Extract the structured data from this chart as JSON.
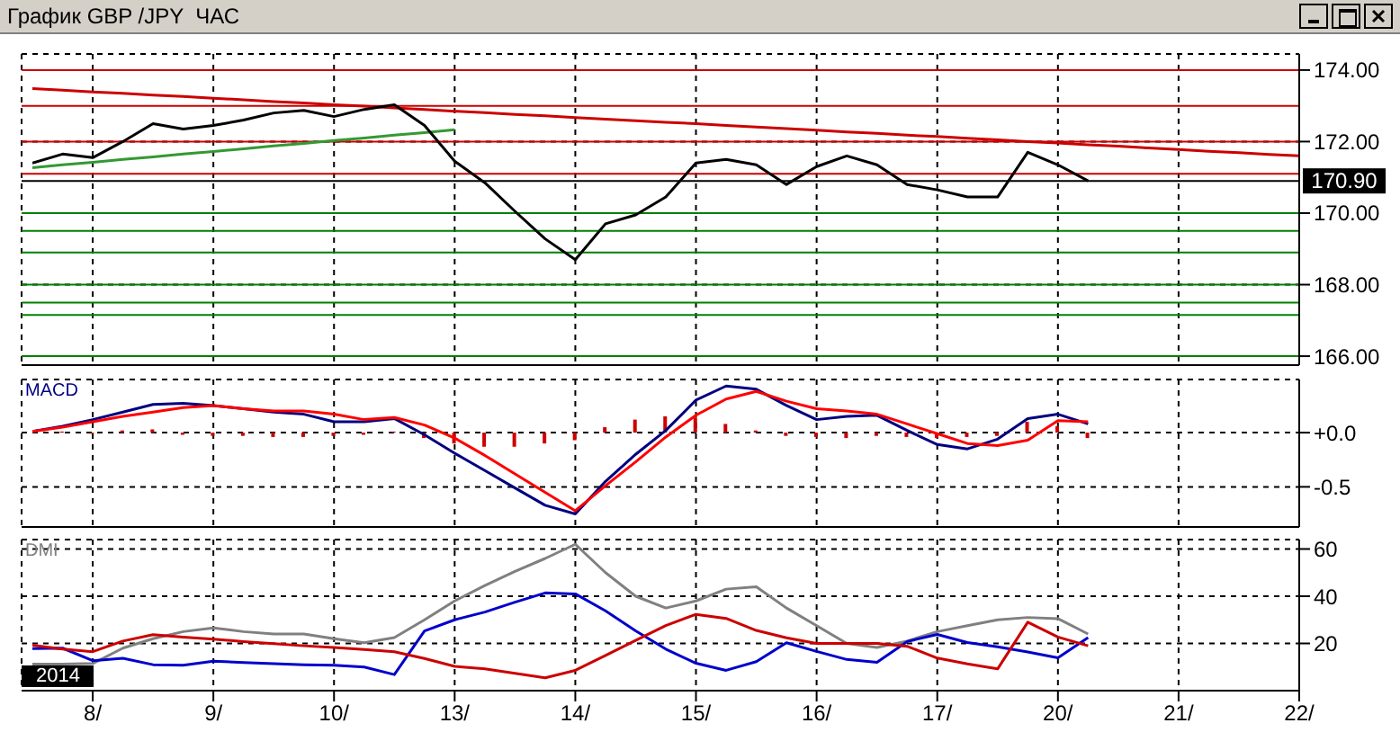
{
  "chart_data": [
    {
      "type": "line",
      "title": "График GBP /JPY  ЧАС",
      "categories": [
        null,
        null,
        null,
        null,
        null,
        null,
        null,
        null,
        null,
        null,
        null,
        null,
        null,
        null,
        null,
        null,
        null,
        null,
        null,
        null,
        null,
        null,
        null,
        null,
        null,
        null,
        null,
        null,
        null,
        null,
        null,
        null,
        null,
        null,
        null,
        null,
        null,
        null,
        null,
        null,
        null,
        null,
        null
      ],
      "ylim": [
        165.75,
        174.45
      ],
      "yticks": [
        {
          "value": 166,
          "label": "166.00"
        },
        {
          "value": 168,
          "label": "168.00"
        },
        {
          "value": 170,
          "label": "170.00"
        },
        {
          "value": 172,
          "label": "172.00"
        },
        {
          "value": 174,
          "label": "174.00"
        }
      ],
      "grid": true,
      "tick_labels": "y",
      "ref_lines": [
        {
          "axis": "y",
          "value": 174,
          "color": "#cc0000"
        },
        {
          "axis": "y",
          "value": 173,
          "color": "#cc0000"
        },
        {
          "axis": "y",
          "value": 172,
          "color": "#cc0000"
        },
        {
          "axis": "y",
          "value": 171.1,
          "color": "#cc0000"
        },
        {
          "axis": "y",
          "value": 170.9,
          "label": "170.90",
          "color": "#000000"
        },
        {
          "axis": "y",
          "value": 170,
          "color": "#008000"
        },
        {
          "axis": "y",
          "value": 169.5,
          "color": "#008000"
        },
        {
          "axis": "y",
          "value": 168.9,
          "color": "#008000"
        },
        {
          "axis": "y",
          "value": 168,
          "color": "#008000"
        },
        {
          "axis": "y",
          "value": 167.5,
          "color": "#008000"
        },
        {
          "axis": "y",
          "value": 167.15,
          "color": "#008000"
        },
        {
          "axis": "y",
          "value": 166,
          "color": "#008000"
        }
      ],
      "series": [
        {
          "type": "line",
          "color": "#cc0000",
          "values": [
            173.48,
            173.44,
            173.39,
            173.35,
            173.3,
            173.26,
            173.21,
            173.17,
            173.12,
            173.08,
            173.03,
            172.99,
            172.94,
            172.9,
            172.85,
            172.81,
            172.76,
            172.72,
            172.67,
            172.63,
            172.58,
            172.54,
            172.5,
            172.45,
            172.41,
            172.36,
            172.32,
            172.27,
            172.23,
            172.18,
            172.14,
            172.09,
            172.05,
            172.0,
            171.96,
            171.91,
            171.87,
            171.82,
            171.78,
            171.73,
            171.69,
            171.64,
            171.6
          ]
        },
        {
          "type": "line",
          "color": "#339933",
          "values": [
            171.27,
            171.35,
            171.42,
            171.5,
            171.57,
            171.65,
            171.72,
            171.8,
            171.88,
            171.95,
            172.03,
            172.1,
            172.18,
            172.25,
            172.33,
            null,
            null,
            null,
            null,
            null,
            null,
            null,
            null,
            null,
            null,
            null,
            null,
            null,
            null,
            null,
            null,
            null,
            null,
            null,
            null,
            null,
            null,
            null,
            null,
            null,
            null,
            null,
            null
          ]
        },
        {
          "type": "line",
          "color": "#000000",
          "values": [
            171.4,
            171.65,
            171.55,
            172.0,
            172.5,
            172.35,
            172.45,
            172.6,
            172.8,
            172.87,
            172.7,
            172.9,
            173.03,
            172.45,
            171.45,
            170.85,
            170.05,
            169.28,
            168.7,
            169.7,
            169.95,
            170.45,
            171.4,
            171.5,
            171.35,
            170.8,
            171.3,
            171.6,
            171.35,
            170.8,
            170.65,
            170.45,
            170.45,
            171.7,
            171.35,
            170.9,
            null,
            null,
            null,
            null,
            null,
            null,
            null
          ]
        }
      ]
    },
    {
      "type": "line",
      "title": "MACD",
      "categories": [
        null,
        null,
        null,
        null,
        null,
        null,
        null,
        null,
        null,
        null,
        null,
        null,
        null,
        null,
        null,
        null,
        null,
        null,
        null,
        null,
        null,
        null,
        null,
        null,
        null,
        null,
        null,
        null,
        null,
        null,
        null,
        null,
        null,
        null,
        null,
        null,
        null,
        null,
        null,
        null,
        null,
        null,
        null
      ],
      "ylim": [
        -0.87,
        0.49
      ],
      "yticks": [
        {
          "value": 0,
          "label": "+0.0"
        },
        {
          "value": -0.5,
          "label": "-0.5"
        }
      ],
      "grid": true,
      "tick_labels": "y",
      "series": [
        {
          "type": "bar",
          "color": "#cc0000",
          "values": [
            0.01,
            0.01,
            -0.01,
            0.02,
            0.03,
            -0.02,
            -0.03,
            -0.03,
            -0.04,
            -0.04,
            -0.03,
            -0.02,
            0.01,
            -0.05,
            -0.1,
            -0.13,
            -0.13,
            -0.1,
            -0.07,
            0.05,
            0.12,
            0.15,
            0.14,
            0.08,
            0.02,
            -0.03,
            -0.04,
            -0.05,
            -0.03,
            -0.04,
            -0.05,
            -0.04,
            -0.03,
            0.1,
            0.06,
            -0.05,
            null,
            null,
            null,
            null,
            null,
            null,
            null
          ]
        },
        {
          "type": "line",
          "color": "#000080",
          "values": [
            0.01,
            0.06,
            0.12,
            0.19,
            0.26,
            0.27,
            0.25,
            0.22,
            0.19,
            0.17,
            0.1,
            0.1,
            0.13,
            -0.02,
            -0.19,
            -0.35,
            -0.51,
            -0.67,
            -0.75,
            -0.45,
            -0.2,
            0.02,
            0.3,
            0.43,
            0.4,
            0.25,
            0.12,
            0.15,
            0.16,
            0.02,
            -0.11,
            -0.15,
            -0.06,
            0.13,
            0.17,
            0.08,
            null,
            null,
            null,
            null,
            null,
            null,
            null
          ]
        },
        {
          "type": "line",
          "color": "#ff0000",
          "values": [
            0.01,
            0.05,
            0.1,
            0.15,
            0.19,
            0.23,
            0.25,
            0.22,
            0.2,
            0.2,
            0.17,
            0.12,
            0.14,
            0.07,
            -0.05,
            -0.21,
            -0.38,
            -0.55,
            -0.72,
            -0.49,
            -0.27,
            -0.04,
            0.16,
            0.31,
            0.38,
            0.29,
            0.22,
            0.2,
            0.17,
            0.08,
            -0.01,
            -0.1,
            -0.12,
            -0.07,
            0.11,
            0.1,
            null,
            null,
            null,
            null,
            null,
            null,
            null
          ]
        }
      ]
    },
    {
      "type": "line",
      "title": "DMI",
      "categories": [
        null,
        null,
        "8/",
        null,
        null,
        null,
        "9/",
        null,
        null,
        null,
        "10/",
        null,
        null,
        null,
        "13/",
        null,
        null,
        null,
        "14/",
        null,
        null,
        null,
        "15/",
        null,
        null,
        null,
        "16/",
        null,
        null,
        null,
        "17/",
        null,
        null,
        null,
        "20/",
        null,
        null,
        null,
        "21/",
        null,
        null,
        null,
        "22/"
      ],
      "ylim": [
        0,
        64
      ],
      "yticks": [
        20,
        40,
        60
      ],
      "grid": true,
      "annotations": [
        "2014"
      ],
      "series": [
        {
          "type": "line",
          "color": "#808080",
          "values": [
            11.2,
            11.2,
            11.5,
            18,
            22,
            25,
            26.6,
            25,
            24,
            24,
            22,
            20.3,
            22.5,
            30,
            38,
            44.5,
            50.5,
            56,
            62,
            50,
            40,
            35,
            38,
            43,
            44,
            35,
            27.5,
            20,
            18.3,
            21,
            25,
            27.5,
            30,
            31,
            30.5,
            24,
            null,
            null,
            null,
            null,
            null,
            null,
            null
          ]
        },
        {
          "type": "line",
          "color": "#0000cc",
          "values": [
            17.8,
            18,
            12.7,
            13.7,
            11,
            10.8,
            12.5,
            11.9,
            11.4,
            11,
            10.8,
            10,
            6.8,
            25.3,
            30,
            33.3,
            37.5,
            41.4,
            41,
            33.8,
            25.3,
            17.6,
            11.6,
            8.6,
            12.3,
            20.3,
            16.6,
            13.2,
            12,
            20.8,
            23.8,
            20.4,
            18.6,
            16.4,
            13.9,
            22.5,
            null,
            null,
            null,
            null,
            null,
            null,
            null
          ]
        },
        {
          "type": "line",
          "color": "#cc0000",
          "values": [
            19.2,
            17.6,
            16.5,
            21,
            23.7,
            22.7,
            21.8,
            20.8,
            19.9,
            19,
            18.3,
            17.4,
            16.5,
            13.6,
            10.3,
            9.2,
            7.3,
            5.4,
            8.6,
            14.9,
            21.3,
            27.6,
            32.3,
            30.6,
            25.5,
            22.4,
            20,
            20,
            20,
            18.8,
            13.8,
            11.3,
            9.2,
            29,
            22.7,
            19,
            null,
            null,
            null,
            null,
            null,
            null,
            null
          ]
        }
      ]
    }
  ]
}
